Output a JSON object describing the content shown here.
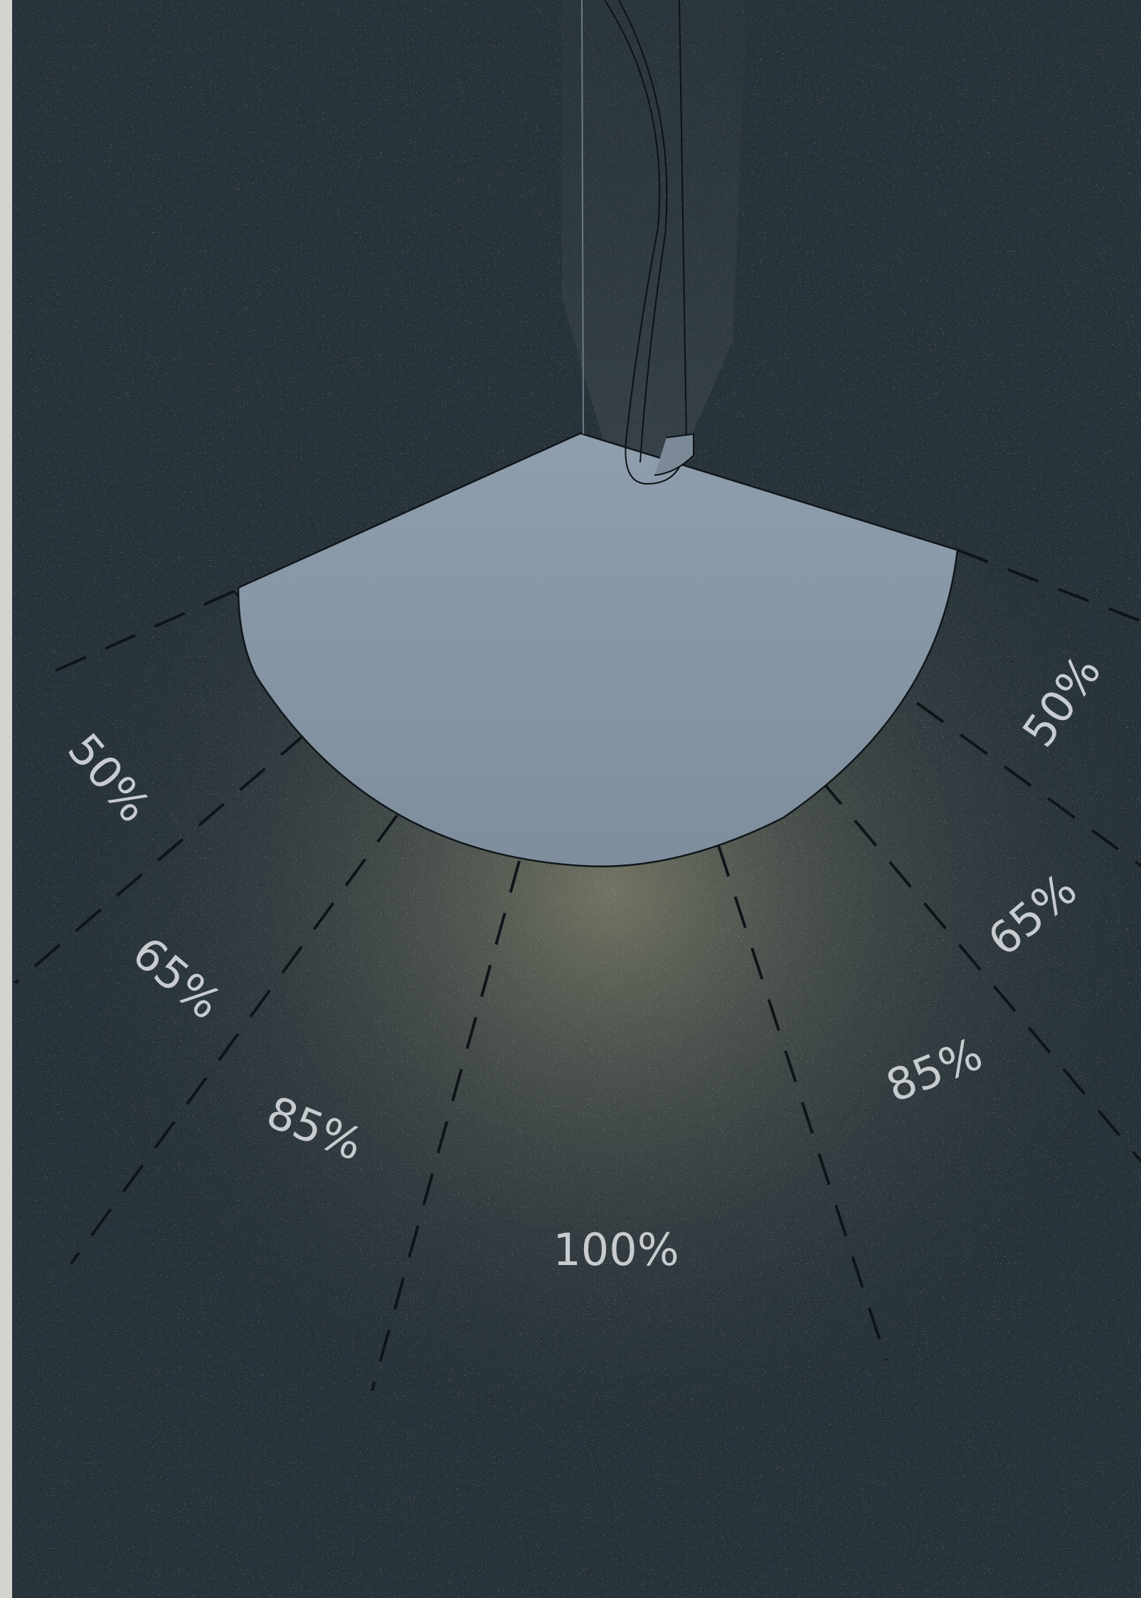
{
  "zones": [
    {
      "label": "50%"
    },
    {
      "label": "65%"
    },
    {
      "label": "85%"
    },
    {
      "label": "100%"
    },
    {
      "label": "85%"
    },
    {
      "label": "65%"
    },
    {
      "label": "50%"
    }
  ]
}
